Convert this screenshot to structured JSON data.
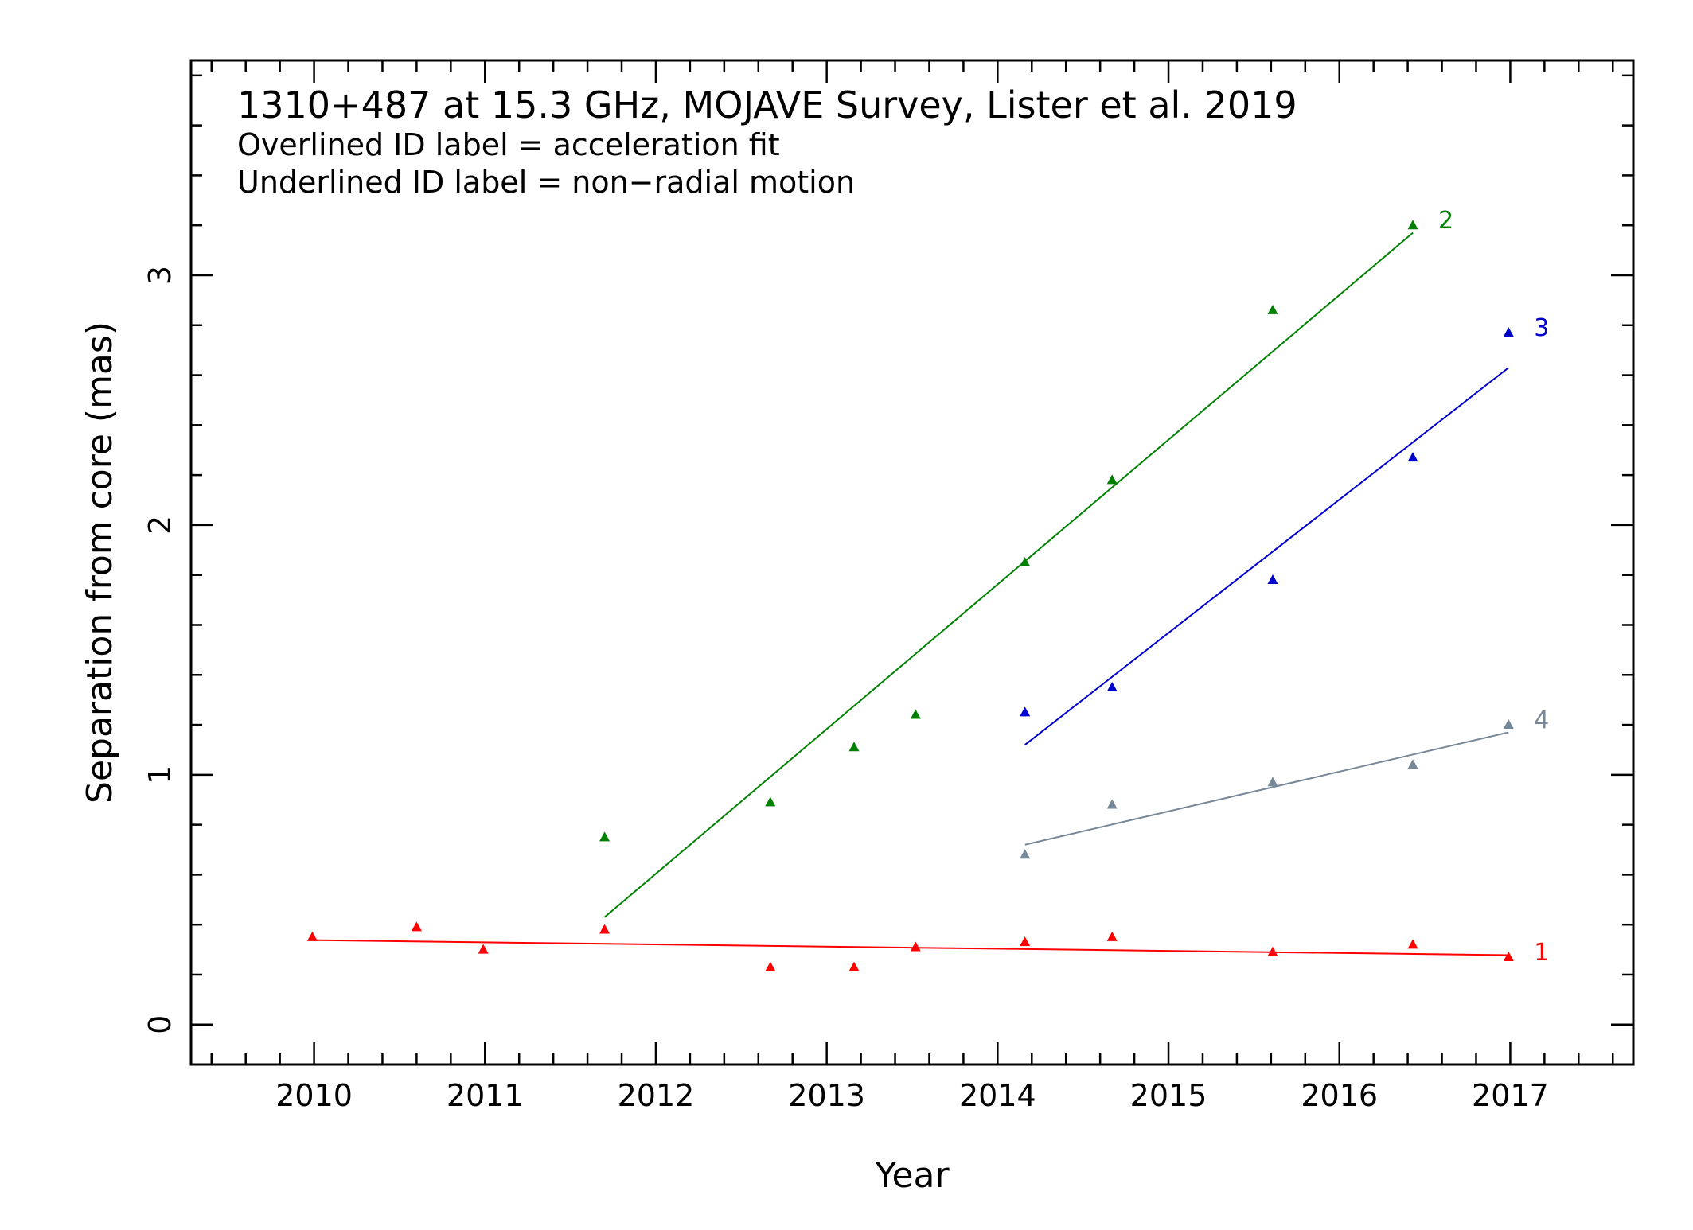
{
  "chart_data": {
    "type": "scatter",
    "title": "1310+487 at 15.3 GHz, MOJAVE Survey, Lister et al. 2019",
    "notes": [
      "Overlined ID label = acceleration fit",
      "Underlined ID label = non−radial motion"
    ],
    "xlabel": "Year",
    "ylabel": "Separation from core (mas)",
    "xlim": [
      2009.28,
      2017.72
    ],
    "ylim": [
      -0.16,
      3.86
    ],
    "xticks": [
      2010,
      2011,
      2012,
      2013,
      2014,
      2015,
      2016,
      2017
    ],
    "yticks": [
      0,
      1,
      2,
      3
    ],
    "xtick_labels": [
      "2010",
      "2011",
      "2012",
      "2013",
      "2014",
      "2015",
      "2016",
      "2017"
    ],
    "ytick_labels": [
      "0",
      "1",
      "2",
      "3"
    ],
    "series": [
      {
        "name": "1",
        "color": "#ff0000",
        "x": [
          2009.99,
          2010.6,
          2010.99,
          2011.7,
          2012.67,
          2013.16,
          2013.52,
          2014.16,
          2014.67,
          2015.61,
          2016.43,
          2016.99
        ],
        "y": [
          0.35,
          0.39,
          0.3,
          0.38,
          0.23,
          0.23,
          0.31,
          0.33,
          0.35,
          0.29,
          0.32,
          0.27
        ],
        "fit": {
          "x": [
            2009.99,
            2016.99
          ],
          "y": [
            0.338,
            0.278
          ]
        }
      },
      {
        "name": "2",
        "color": "#008000",
        "x": [
          2011.7,
          2012.67,
          2013.16,
          2013.52,
          2014.16,
          2014.67,
          2015.61,
          2016.43
        ],
        "y": [
          0.75,
          0.89,
          1.11,
          1.24,
          1.85,
          2.18,
          2.86,
          3.2
        ],
        "fit": {
          "x": [
            2011.7,
            2016.43
          ],
          "y": [
            0.43,
            3.17
          ]
        }
      },
      {
        "name": "3",
        "color": "#0000cc",
        "x": [
          2014.16,
          2014.67,
          2015.61,
          2016.43,
          2016.99
        ],
        "y": [
          1.25,
          1.35,
          1.78,
          2.27,
          2.77
        ],
        "fit": {
          "x": [
            2014.16,
            2016.99
          ],
          "y": [
            1.12,
            2.63
          ]
        }
      },
      {
        "name": "4",
        "color": "#778899",
        "x": [
          2014.16,
          2014.67,
          2015.61,
          2016.43,
          2016.99
        ],
        "y": [
          0.68,
          0.88,
          0.97,
          1.04,
          1.2
        ],
        "fit": {
          "x": [
            2014.16,
            2016.99
          ],
          "y": [
            0.72,
            1.17
          ]
        }
      }
    ]
  }
}
